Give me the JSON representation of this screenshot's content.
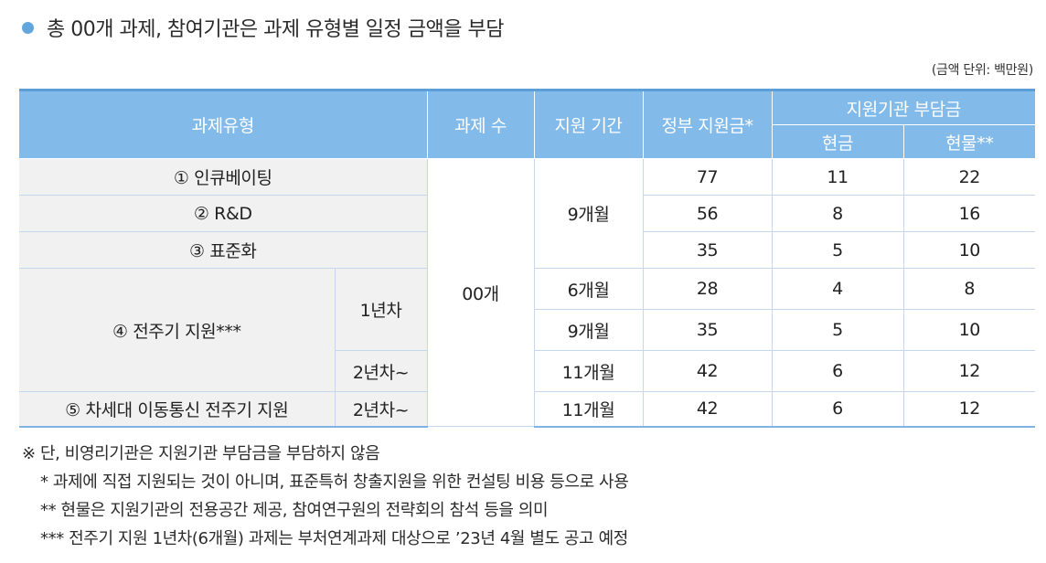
{
  "title": "총 00개 과제, 참여기관은 과제 유형별 일정 금액을 부담",
  "unit": "(금액 단위: 백만원)",
  "header": {
    "type": "과제유형",
    "count": "과제 수",
    "period": "지원 기간",
    "gov": "정부 지원금*",
    "burden": "지원기관 부담금",
    "cash": "현금",
    "inkind": "현물**"
  },
  "count_value": "00개",
  "rows": {
    "r1": {
      "label": "① 인큐베이팅",
      "gov": "77",
      "cash": "11",
      "inkind": "22"
    },
    "r2": {
      "label": "② R&D",
      "gov": "56",
      "cash": "8",
      "inkind": "16"
    },
    "r3": {
      "label": "③ 표준화",
      "gov": "35",
      "cash": "5",
      "inkind": "10"
    },
    "group_period": "9개월",
    "r4": {
      "label": "④ 전주기 지원***",
      "sub1": "1년차",
      "a": {
        "period": "6개월",
        "gov": "28",
        "cash": "4",
        "inkind": "8"
      },
      "b": {
        "period": "9개월",
        "gov": "35",
        "cash": "5",
        "inkind": "10"
      },
      "sub2": "2년차~",
      "c": {
        "period": "11개월",
        "gov": "42",
        "cash": "6",
        "inkind": "12"
      }
    },
    "r5": {
      "label": "⑤ 차세대 이동통신 전주기 지원",
      "sub": "2년차~",
      "period": "11개월",
      "gov": "42",
      "cash": "6",
      "inkind": "12"
    }
  },
  "notes": [
    "※ 단, 비영리기관은 지원기관 부담금을 부담하지 않음",
    "* 과제에 직접 지원되는 것이 아니며, 표준특허 창출지원을 위한 컨설팅 비용 등으로 사용",
    "** 현물은 지원기관의 전용공간 제공, 참여연구원의 전략회의 참석 등을 의미",
    "*** 전주기 지원 1년차(6개월) 과제는 부처연계과제 대상으로 ’23년 4월 별도 공고 예정"
  ]
}
